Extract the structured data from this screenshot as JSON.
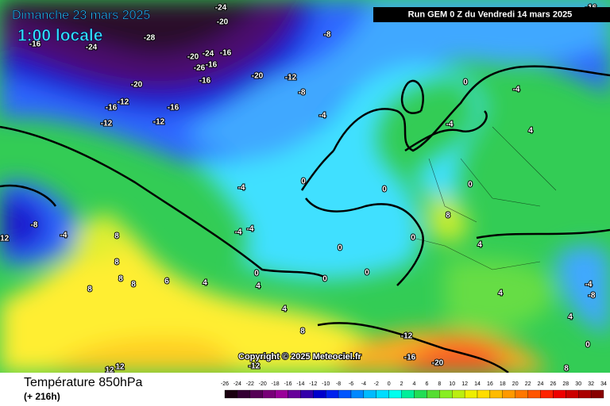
{
  "header": {
    "date": "Dimanche 23 mars 2025",
    "time": "1:00 locale",
    "run": "Run GEM 0 Z du Vendredi 14 mars 2025"
  },
  "footer": {
    "title": "Température 850hPa",
    "lead": "(+ 216h)",
    "copyright": "Copyright © 2025 Meteociel.fr"
  },
  "scale": [
    -26,
    -24,
    -22,
    -20,
    -18,
    -16,
    -14,
    -12,
    -10,
    -8,
    -6,
    -4,
    -2,
    0,
    2,
    4,
    6,
    8,
    10,
    12,
    14,
    16,
    18,
    20,
    22,
    24,
    26,
    28,
    30,
    32,
    34
  ],
  "map_labels": [
    -24,
    -20,
    -28,
    -24,
    -16,
    -8,
    -20,
    -24,
    -16,
    -16,
    -26,
    -20,
    -16,
    -20,
    -12,
    -8,
    -16,
    -16,
    -12,
    -12,
    -12,
    -4,
    0,
    -4,
    -4,
    -4,
    -8,
    -4,
    -12,
    -4,
    -4,
    0,
    0,
    8,
    0,
    0,
    0,
    8,
    8,
    8,
    8,
    6,
    8,
    4,
    4,
    0,
    4,
    8,
    -12,
    -16,
    -20,
    12,
    12,
    -12,
    -4,
    -8,
    4,
    0,
    8,
    4,
    4,
    0,
    0,
    4,
    -16
  ]
}
